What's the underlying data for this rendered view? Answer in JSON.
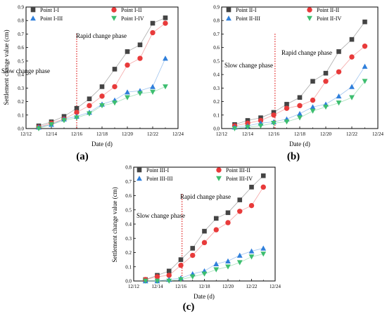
{
  "colors": {
    "I": "#444444",
    "II": "#e83a3a",
    "III": "#2f7fdb",
    "IV": "#3dbe6f",
    "phase_line": "#e02020"
  },
  "chart_data": [
    {
      "panel": "(a)",
      "type": "line",
      "xlabel": "Date (d)",
      "ylabel": "Settlement change value (cm)",
      "x_ticks": [
        "12/12",
        "12/14",
        "12/16",
        "12/18",
        "12/20",
        "12/22",
        "12/24"
      ],
      "xlim": [
        12,
        24
      ],
      "ylim": [
        0,
        0.9
      ],
      "y_ticks": [
        "0.0",
        "0.1",
        "0.2",
        "0.3",
        "0.4",
        "0.5",
        "0.6",
        "0.7",
        "0.8",
        "0.9"
      ],
      "phase_divider_x": 16,
      "annotations": {
        "slow": "Slow change phase",
        "rapid": "Rapid change phase"
      },
      "x": [
        13,
        14,
        15,
        16,
        17,
        18,
        19,
        20,
        21,
        22,
        23
      ],
      "series": [
        {
          "name": "Point I-I",
          "marker": "square",
          "color_key": "I",
          "values": [
            0.02,
            0.05,
            0.09,
            0.15,
            0.22,
            0.31,
            0.44,
            0.57,
            0.62,
            0.78,
            0.82
          ]
        },
        {
          "name": "Point I-II",
          "marker": "circle",
          "color_key": "II",
          "values": [
            0.01,
            0.04,
            0.07,
            0.12,
            0.17,
            0.24,
            0.31,
            0.47,
            0.52,
            0.71,
            0.78
          ]
        },
        {
          "name": "Point I-III",
          "marker": "triangle",
          "color_key": "III",
          "values": [
            0.01,
            0.03,
            0.07,
            0.09,
            0.12,
            0.18,
            0.21,
            0.27,
            0.28,
            0.31,
            0.52
          ]
        },
        {
          "name": "Point I-IV",
          "marker": "tridown",
          "color_key": "IV",
          "values": [
            0.0,
            0.03,
            0.06,
            0.08,
            0.11,
            0.17,
            0.19,
            0.23,
            0.26,
            0.27,
            0.31
          ]
        }
      ]
    },
    {
      "panel": "(b)",
      "type": "line",
      "xlabel": "Date (d)",
      "ylabel": "",
      "x_ticks": [
        "12/12",
        "12/14",
        "12/16",
        "12/18",
        "12/20",
        "12/22",
        "12/24"
      ],
      "xlim": [
        12,
        24
      ],
      "ylim": [
        0,
        0.9
      ],
      "y_ticks": [
        "0.0",
        "0.1",
        "0.2",
        "0.3",
        "0.4",
        "0.5",
        "0.6",
        "0.7",
        "0.8",
        "0.9"
      ],
      "phase_divider_x": 16.1,
      "annotations": {
        "slow": "Slow change phase",
        "rapid": "Rapid change phase"
      },
      "x": [
        13,
        14,
        15,
        16,
        17,
        18,
        19,
        20,
        21,
        22,
        23
      ],
      "series": [
        {
          "name": "Point II-I",
          "marker": "square",
          "color_key": "I",
          "values": [
            0.03,
            0.06,
            0.08,
            0.12,
            0.18,
            0.23,
            0.35,
            0.41,
            0.57,
            0.66,
            0.79
          ]
        },
        {
          "name": "Point II-II",
          "marker": "circle",
          "color_key": "II",
          "values": [
            0.02,
            0.04,
            0.06,
            0.1,
            0.15,
            0.17,
            0.21,
            0.35,
            0.42,
            0.53,
            0.61
          ]
        },
        {
          "name": "Point II-III",
          "marker": "triangle",
          "color_key": "III",
          "values": [
            0.01,
            0.02,
            0.04,
            0.05,
            0.07,
            0.11,
            0.16,
            0.18,
            0.24,
            0.31,
            0.46
          ]
        },
        {
          "name": "Point II-IV",
          "marker": "tridown",
          "color_key": "IV",
          "values": [
            0.0,
            0.01,
            0.02,
            0.04,
            0.05,
            0.08,
            0.13,
            0.16,
            0.19,
            0.23,
            0.35
          ]
        }
      ]
    },
    {
      "panel": "(c)",
      "type": "line",
      "xlabel": "Date (d)",
      "ylabel": "Settlement change value (cm)",
      "x_ticks": [
        "12/12",
        "12/14",
        "12/16",
        "12/18",
        "12/20",
        "12/22",
        "12/24"
      ],
      "xlim": [
        12,
        24
      ],
      "ylim": [
        0,
        0.8
      ],
      "y_ticks": [
        "0.0",
        "0.1",
        "0.2",
        "0.3",
        "0.4",
        "0.5",
        "0.6",
        "0.7",
        "0.8"
      ],
      "phase_divider_x": 16.1,
      "annotations": {
        "slow": "Slow change phase",
        "rapid": "Rapid change phase"
      },
      "x": [
        13,
        14,
        15,
        16,
        17,
        18,
        19,
        20,
        21,
        22,
        23
      ],
      "series": [
        {
          "name": "Point III-I",
          "marker": "square",
          "color_key": "I",
          "values": [
            0.01,
            0.04,
            0.07,
            0.15,
            0.23,
            0.35,
            0.44,
            0.48,
            0.57,
            0.66,
            0.74
          ]
        },
        {
          "name": "Point III-II",
          "marker": "circle",
          "color_key": "II",
          "values": [
            0.01,
            0.03,
            0.04,
            0.11,
            0.18,
            0.27,
            0.36,
            0.41,
            0.49,
            0.53,
            0.66
          ]
        },
        {
          "name": "Point III-III",
          "marker": "triangle",
          "color_key": "III",
          "values": [
            0.0,
            0.0,
            0.01,
            0.02,
            0.05,
            0.07,
            0.12,
            0.14,
            0.18,
            0.21,
            0.23
          ]
        },
        {
          "name": "Point III-IV",
          "marker": "tridown",
          "color_key": "IV",
          "values": [
            0.0,
            0.0,
            0.0,
            0.01,
            0.03,
            0.05,
            0.08,
            0.1,
            0.13,
            0.17,
            0.19
          ]
        }
      ]
    }
  ]
}
